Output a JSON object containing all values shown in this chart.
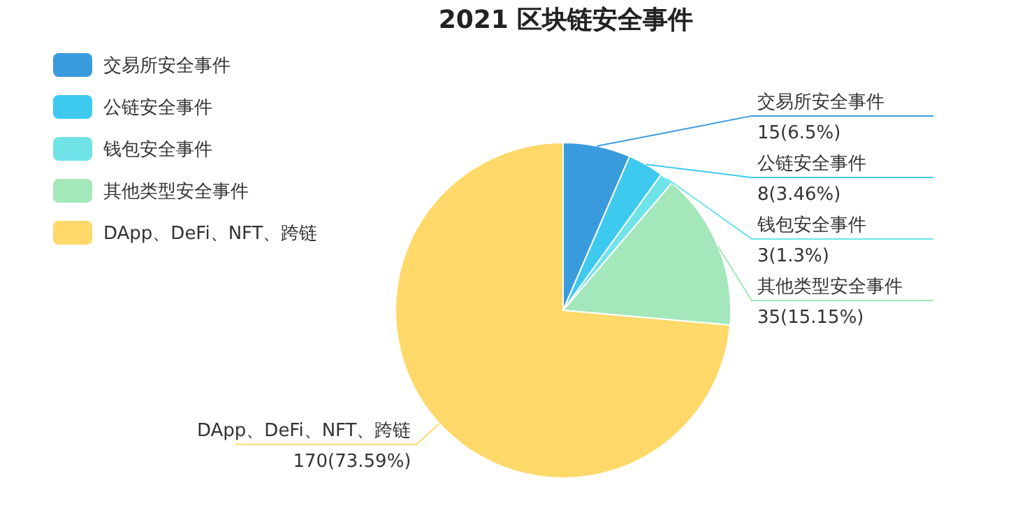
{
  "chart_data": {
    "type": "pie",
    "title": "2021 区块链安全事件",
    "categories": [
      "交易所安全事件",
      "公链安全事件",
      "钱包安全事件",
      "其他类型安全事件",
      "DApp、DeFi、NFT、跨链"
    ],
    "values": [
      15,
      8,
      3,
      35,
      170
    ],
    "value_labels": [
      "15(6.5%)",
      "8(3.46%)",
      "3(1.3%)",
      "35(15.15%)",
      "170(73.59%)"
    ],
    "colors": [
      "#3a9bdc",
      "#3ec9ee",
      "#6fe3e8",
      "#a3e7bb",
      "#fed96a"
    ],
    "legend": "top left"
  }
}
